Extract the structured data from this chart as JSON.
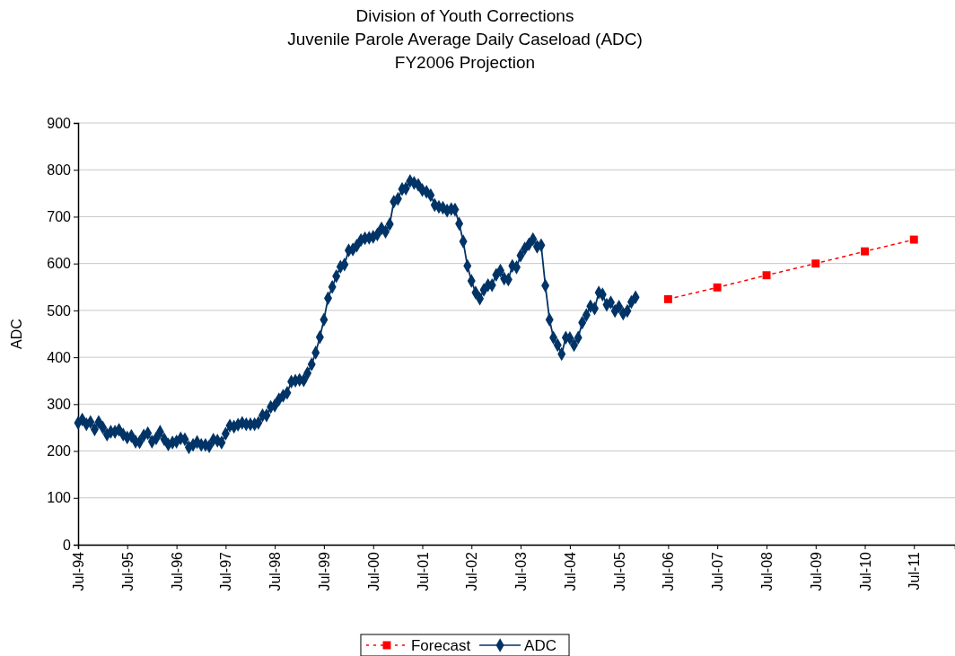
{
  "chart_data": {
    "type": "line",
    "title": "Division of Youth Corrections",
    "subtitle": "Juvenile Parole Average Daily Caseload (ADC)\nFY2006 Projection",
    "ylabel": "ADC",
    "xlim": [
      "1994-07",
      "2012-05"
    ],
    "xticks": [
      {
        "value": "1994-07",
        "label": "Jul-94"
      },
      {
        "value": "1995-07",
        "label": "Jul-95"
      },
      {
        "value": "1996-07",
        "label": "Jul-96"
      },
      {
        "value": "1997-07",
        "label": "Jul-97"
      },
      {
        "value": "1998-07",
        "label": "Jul-98"
      },
      {
        "value": "1999-07",
        "label": "Jul-99"
      },
      {
        "value": "2000-07",
        "label": "Jul-00"
      },
      {
        "value": "2001-07",
        "label": "Jul-01"
      },
      {
        "value": "2002-07",
        "label": "Jul-02"
      },
      {
        "value": "2003-07",
        "label": "Jul-03"
      },
      {
        "value": "2004-07",
        "label": "Jul-04"
      },
      {
        "value": "2005-07",
        "label": "Jul-05"
      },
      {
        "value": "2006-07",
        "label": "Jul-06"
      },
      {
        "value": "2007-07",
        "label": "Jul-07"
      },
      {
        "value": "2008-07",
        "label": "Jul-08"
      },
      {
        "value": "2009-07",
        "label": "Jul-09"
      },
      {
        "value": "2010-07",
        "label": "Jul-10"
      },
      {
        "value": "2011-07",
        "label": "Jul-11"
      }
    ],
    "ylim": [
      0,
      900
    ],
    "yticks": [
      0,
      100,
      200,
      300,
      400,
      500,
      600,
      700,
      800,
      900
    ],
    "grid": "y",
    "legend": "bottom",
    "series": [
      {
        "name": "Forecast",
        "color": "#ff0000",
        "marker": "square",
        "line_style": "dotted",
        "x": [
          "2006-07",
          "2007-07",
          "2008-07",
          "2009-07",
          "2010-07",
          "2011-07"
        ],
        "values": [
          524,
          549,
          575,
          600,
          626,
          651
        ]
      },
      {
        "name": "ADC",
        "color": "#003366",
        "marker": "diamond",
        "line_style": "solid",
        "x": [
          "1994-07",
          "1994-08",
          "1994-09",
          "1994-10",
          "1994-11",
          "1994-12",
          "1995-01",
          "1995-02",
          "1995-03",
          "1995-04",
          "1995-05",
          "1995-06",
          "1995-07",
          "1995-08",
          "1995-09",
          "1995-10",
          "1995-11",
          "1995-12",
          "1996-01",
          "1996-02",
          "1996-03",
          "1996-04",
          "1996-05",
          "1996-06",
          "1996-07",
          "1996-08",
          "1996-09",
          "1996-10",
          "1996-11",
          "1996-12",
          "1997-01",
          "1997-02",
          "1997-03",
          "1997-04",
          "1997-05",
          "1997-06",
          "1997-07",
          "1997-08",
          "1997-09",
          "1997-10",
          "1997-11",
          "1997-12",
          "1998-01",
          "1998-02",
          "1998-03",
          "1998-04",
          "1998-05",
          "1998-06",
          "1998-07",
          "1998-08",
          "1998-09",
          "1998-10",
          "1998-11",
          "1998-12",
          "1999-01",
          "1999-02",
          "1999-03",
          "1999-04",
          "1999-05",
          "1999-06",
          "1999-07",
          "1999-08",
          "1999-09",
          "1999-10",
          "1999-11",
          "1999-12",
          "2000-01",
          "2000-02",
          "2000-03",
          "2000-04",
          "2000-05",
          "2000-06",
          "2000-07",
          "2000-08",
          "2000-09",
          "2000-10",
          "2000-11",
          "2000-12",
          "2001-01",
          "2001-02",
          "2001-03",
          "2001-04",
          "2001-05",
          "2001-06",
          "2001-07",
          "2001-08",
          "2001-09",
          "2001-10",
          "2001-11",
          "2001-12",
          "2002-01",
          "2002-02",
          "2002-03",
          "2002-04",
          "2002-05",
          "2002-06",
          "2002-07",
          "2002-08",
          "2002-09",
          "2002-10",
          "2002-11",
          "2002-12",
          "2003-01",
          "2003-02",
          "2003-03",
          "2003-04",
          "2003-05",
          "2003-06",
          "2003-07",
          "2003-08",
          "2003-09",
          "2003-10",
          "2003-11",
          "2003-12",
          "2004-01",
          "2004-02",
          "2004-03",
          "2004-04",
          "2004-05",
          "2004-06",
          "2004-07",
          "2004-08",
          "2004-09",
          "2004-10",
          "2004-11",
          "2004-12",
          "2005-01",
          "2005-02",
          "2005-03",
          "2005-04",
          "2005-05",
          "2005-06",
          "2005-07",
          "2005-08",
          "2005-09",
          "2005-10",
          "2005-11"
        ],
        "values": [
          260,
          267,
          257,
          262,
          246,
          262,
          250,
          235,
          241,
          241,
          245,
          235,
          229,
          232,
          220,
          219,
          233,
          238,
          220,
          227,
          241,
          225,
          214,
          218,
          220,
          227,
          225,
          208,
          213,
          219,
          213,
          213,
          210,
          224,
          222,
          218,
          237,
          254,
          252,
          256,
          260,
          257,
          257,
          257,
          260,
          276,
          276,
          294,
          297,
          310,
          318,
          324,
          348,
          350,
          352,
          351,
          366,
          385,
          410,
          443,
          480,
          526,
          550,
          573,
          593,
          598,
          628,
          630,
          638,
          650,
          654,
          655,
          657,
          662,
          675,
          668,
          684,
          732,
          738,
          759,
          760,
          776,
          772,
          768,
          757,
          753,
          746,
          725,
          721,
          719,
          713,
          716,
          715,
          685,
          647,
          595,
          563,
          538,
          525,
          544,
          554,
          554,
          576,
          585,
          568,
          566,
          595,
          592,
          617,
          632,
          641,
          652,
          636,
          639,
          553,
          480,
          442,
          426,
          407,
          442,
          441,
          426,
          442,
          474,
          490,
          509,
          504,
          538,
          534,
          512,
          517,
          499,
          508,
          493,
          499,
          518,
          528
        ]
      }
    ]
  }
}
